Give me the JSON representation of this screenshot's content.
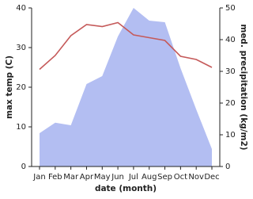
{
  "chart_data": {
    "type": "line-area",
    "x_label": "date (month)",
    "y_label": "max temp (C)",
    "y2_label": "med. precipitation (kg/m2)",
    "categories": [
      "Jan",
      "Feb",
      "Mar",
      "Apr",
      "May",
      "Jun",
      "Jul",
      "Aug",
      "Sep",
      "Oct",
      "Nov",
      "Dec"
    ],
    "series": [
      {
        "type": "area",
        "axis": "y2",
        "color": "#b3bef2",
        "values": [
          10.5,
          13.8,
          13,
          26,
          28.5,
          41,
          50,
          46,
          45.5,
          31,
          18,
          5.5
        ]
      },
      {
        "type": "line",
        "axis": "y",
        "color": "#c55a5a",
        "values": [
          24.5,
          28,
          33,
          35.8,
          35.3,
          36.3,
          33.2,
          32.5,
          31.8,
          27.8,
          27,
          25
        ]
      }
    ],
    "ylim": [
      0,
      40
    ],
    "yticks": [
      0,
      10,
      20,
      30,
      40
    ],
    "y2lim": [
      0,
      50
    ],
    "y2ticks": [
      0,
      10,
      20,
      30,
      40,
      50
    ]
  }
}
